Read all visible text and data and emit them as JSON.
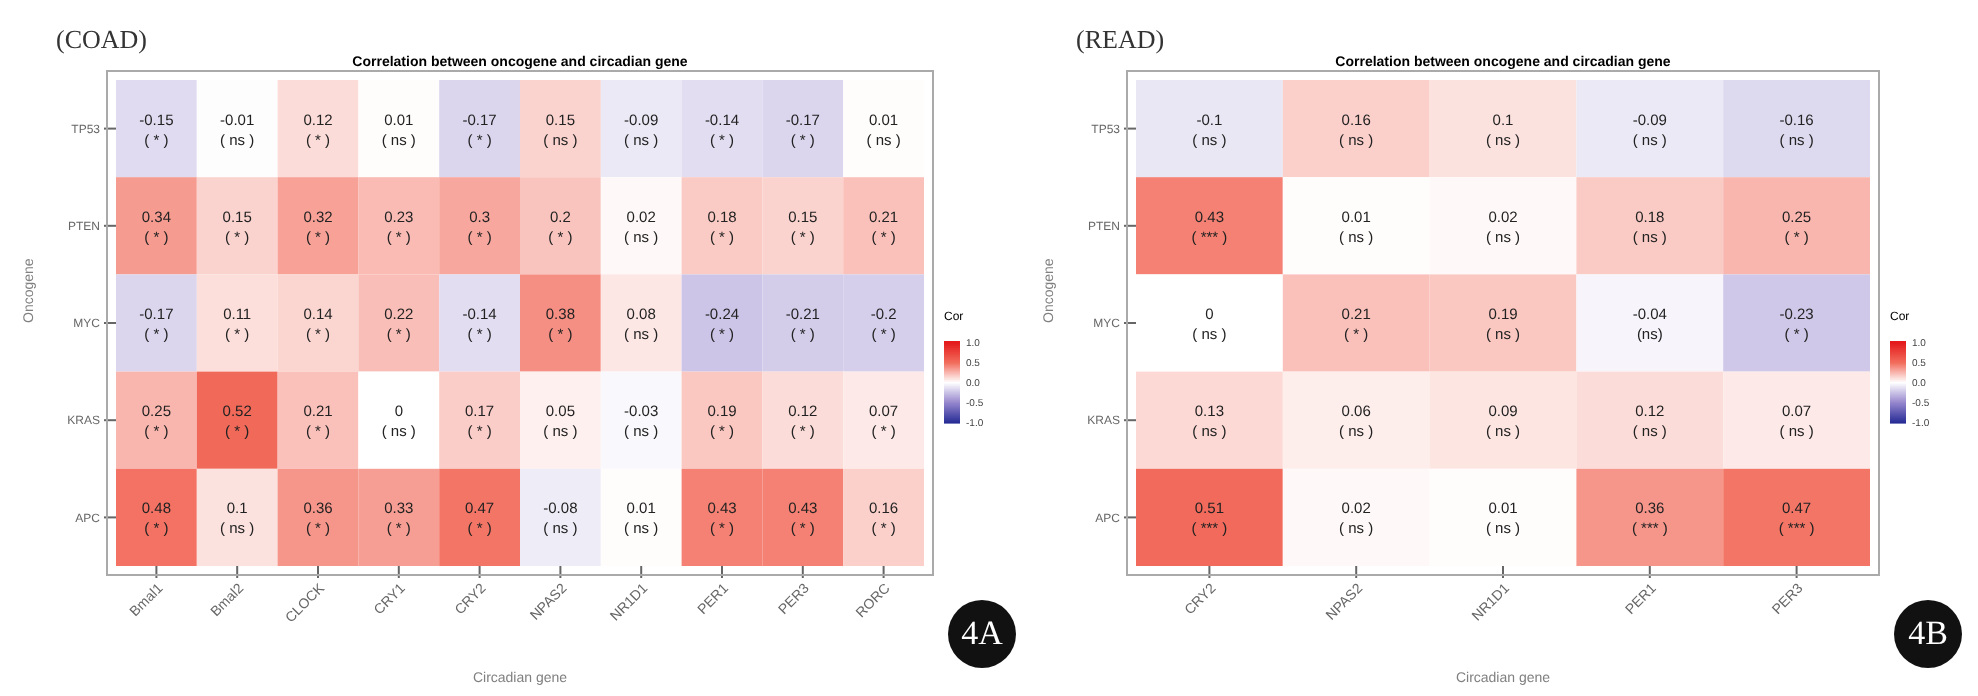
{
  "chart_data": [
    {
      "type": "heatmap",
      "title": "Correlation between oncogene and circadian gene",
      "xlabel": "Circadian gene",
      "ylabel": "Oncogene",
      "clabel": "Cor",
      "annotations": [
        "(COAD)",
        "4A"
      ],
      "categories": [
        "Bmal1",
        "Bmal2",
        "CLOCK",
        "CRY1",
        "CRY2",
        "NPAS2",
        "NR1D1",
        "PER1",
        "PER3",
        "RORC"
      ],
      "y_categories": [
        "TP53",
        "PTEN",
        "MYC",
        "KRAS",
        "APC"
      ],
      "cells": [
        [
          -0.15,
          -0.01,
          0.12,
          0.01,
          -0.17,
          0.15,
          -0.09,
          -0.14,
          -0.17,
          0.01
        ],
        [
          0.34,
          0.15,
          0.32,
          0.23,
          0.3,
          0.2,
          0.02,
          0.18,
          0.15,
          0.21
        ],
        [
          -0.17,
          0.11,
          0.14,
          0.22,
          -0.14,
          0.38,
          0.08,
          -0.24,
          -0.21,
          -0.2
        ],
        [
          0.25,
          0.52,
          0.21,
          0,
          0.17,
          0.05,
          -0.03,
          0.19,
          0.12,
          0.07
        ],
        [
          0.48,
          0.1,
          0.36,
          0.33,
          0.47,
          -0.08,
          0.01,
          0.43,
          0.43,
          0.16
        ]
      ],
      "cell_labels": [
        [
          "-0.15\n( * )",
          "-0.01\n( ns )",
          "0.12\n( * )",
          "0.01\n( ns )",
          "-0.17\n( * )",
          "0.15\n( ns )",
          "-0.09\n( ns )",
          "-0.14\n( * )",
          "-0.17\n( * )",
          "0.01\n( ns )"
        ],
        [
          "0.34\n( * )",
          "0.15\n( * )",
          "0.32\n( * )",
          "0.23\n( * )",
          "0.3\n( * )",
          "0.2\n( * )",
          "0.02\n( ns )",
          "0.18\n( * )",
          "0.15\n( * )",
          "0.21\n( * )"
        ],
        [
          "-0.17\n( * )",
          "0.11\n( * )",
          "0.14\n( * )",
          "0.22\n( * )",
          "-0.14\n( * )",
          "0.38\n( * )",
          "0.08\n( ns )",
          "-0.24\n( * )",
          "-0.21\n( * )",
          "-0.2\n( * )"
        ],
        [
          "0.25\n( * )",
          "0.52\n( * )",
          "0.21\n( * )",
          "0\n( ns )",
          "0.17\n( * )",
          "0.05\n( ns )",
          "-0.03\n( ns )",
          "0.19\n( * )",
          "0.12\n( * )",
          "0.07\n( * )"
        ],
        [
          "0.48\n( * )",
          "0.1\n( ns )",
          "0.36\n( * )",
          "0.33\n( * )",
          "0.47\n( * )",
          "-0.08\n( ns )",
          "0.01\n( ns )",
          "0.43\n( * )",
          "0.43\n( * )",
          "0.16\n( * )"
        ]
      ],
      "clim": [
        -1,
        1
      ],
      "cticks": [
        {
          "value": -1,
          "label": "-1.0"
        },
        {
          "value": -0.5,
          "label": "-0.5"
        },
        {
          "value": 0,
          "label": "0.0"
        },
        {
          "value": 0.5,
          "label": "0.5"
        },
        {
          "value": 1,
          "label": "1.0"
        }
      ]
    },
    {
      "type": "heatmap",
      "title": "Correlation between oncogene and circadian gene",
      "xlabel": "Circadian gene",
      "ylabel": "Oncogene",
      "clabel": "Cor",
      "annotations": [
        "(READ)",
        "4B"
      ],
      "categories": [
        "CRY2",
        "NPAS2",
        "NR1D1",
        "PER1",
        "PER3"
      ],
      "y_categories": [
        "TP53",
        "PTEN",
        "MYC",
        "KRAS",
        "APC"
      ],
      "cells": [
        [
          -0.1,
          0.16,
          0.1,
          -0.09,
          -0.16
        ],
        [
          0.43,
          0.01,
          0.02,
          0.18,
          0.25
        ],
        [
          0,
          0.21,
          0.19,
          -0.04,
          -0.23
        ],
        [
          0.13,
          0.06,
          0.09,
          0.12,
          0.07
        ],
        [
          0.51,
          0.02,
          0.01,
          0.36,
          0.47
        ]
      ],
      "cell_labels": [
        [
          "-0.1\n( ns )",
          "0.16\n( ns )",
          "0.1\n( ns )",
          "-0.09\n( ns )",
          "-0.16\n( ns )"
        ],
        [
          "0.43\n( *** )",
          "0.01\n( ns )",
          "0.02\n( ns )",
          "0.18\n( ns )",
          "0.25\n( * )"
        ],
        [
          "0\n( ns )",
          "0.21\n( * )",
          "0.19\n( ns )",
          "-0.04\n(ns)",
          "-0.23\n( * )"
        ],
        [
          "0.13\n( ns )",
          "0.06\n( ns )",
          "0.09\n( ns )",
          "0.12\n( ns )",
          "0.07\n( ns )"
        ],
        [
          "0.51\n( *** )",
          "0.02\n( ns )",
          "0.01\n( ns )",
          "0.36\n( *** )",
          "0.47\n( *** )"
        ]
      ],
      "clim": [
        -1,
        1
      ],
      "cticks": [
        {
          "value": -1,
          "label": "-1.0"
        },
        {
          "value": -0.5,
          "label": "-0.5"
        },
        {
          "value": 0,
          "label": "0.0"
        },
        {
          "value": 0.5,
          "label": "0.5"
        },
        {
          "value": 1,
          "label": "1.0"
        }
      ]
    }
  ]
}
